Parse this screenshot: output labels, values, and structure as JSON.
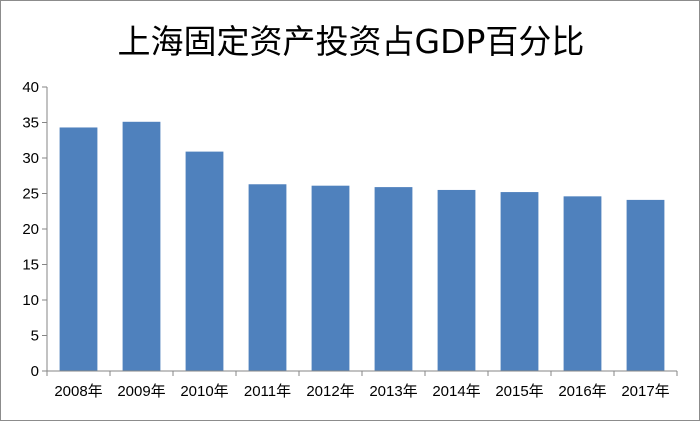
{
  "chart_data": {
    "type": "bar",
    "title": "上海固定资产投资占GDP百分比",
    "xlabel": "",
    "ylabel": "",
    "categories": [
      "2008年",
      "2009年",
      "2010年",
      "2011年",
      "2012年",
      "2013年",
      "2014年",
      "2015年",
      "2016年",
      "2017年"
    ],
    "values": [
      34.3,
      35.1,
      30.9,
      26.3,
      26.1,
      25.9,
      25.5,
      25.2,
      24.6,
      24.1
    ],
    "ylim": [
      0,
      40
    ],
    "yticks": [
      "0",
      "5",
      "10",
      "15",
      "20",
      "25",
      "30",
      "35",
      "40"
    ],
    "grid": false,
    "legend": "none",
    "bar_color": "#4f81bd",
    "axis_color": "#868686"
  }
}
